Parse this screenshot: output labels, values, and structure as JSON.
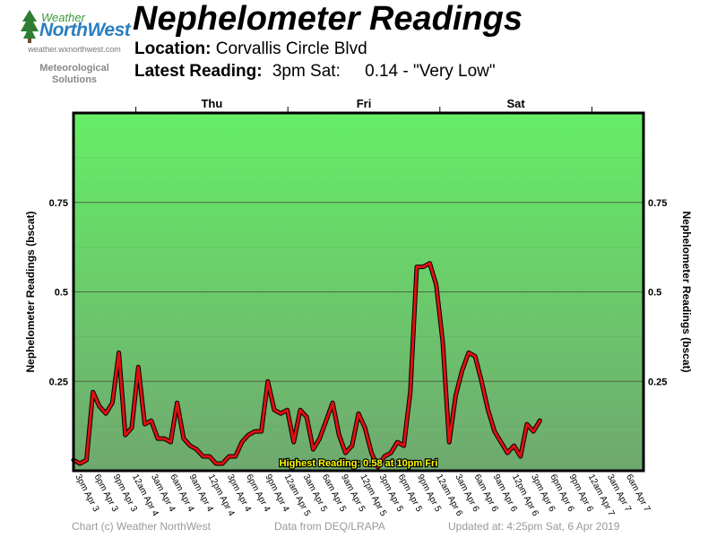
{
  "logo": {
    "word_top": "Weather",
    "word_main": "NorthWest",
    "url": "weather.wxnorthwest.com",
    "sub_line1": "Meteorological",
    "sub_line2": "Solutions"
  },
  "header": {
    "title": "Nephelometer Readings",
    "location_label": "Location:",
    "location_value": "Corvallis Circle Blvd",
    "latest_label": "Latest Reading:",
    "latest_time": "3pm Sat:",
    "latest_value": "0.14 - \"Very Low\""
  },
  "footer": {
    "copyright": "Chart (c) Weather NorthWest",
    "source": "Data from DEQ/LRAPA",
    "updated": "Updated at: 4:25pm Sat, 6 Apr 2019"
  },
  "colors": {
    "line": "#e01010",
    "line_outline": "#000000",
    "band_top": "#66ee66",
    "band_bottom": "#6fa86f",
    "frame": "#000000",
    "highest_text": "#ffff00"
  },
  "chart_data": {
    "type": "line",
    "ylabel": "Nephelometer Readings (bscat)",
    "ylim": [
      0,
      1.0
    ],
    "yticks": [
      "0.25",
      "0.5",
      "0.75"
    ],
    "ytick_values": [
      0.25,
      0.5,
      0.75
    ],
    "grid": true,
    "day_labels": [
      "Thu",
      "Fri",
      "Sat"
    ],
    "x_labels": [
      "3pm Apr 3",
      "6pm Apr 3",
      "9pm Apr 3",
      "12am Apr 4",
      "3am Apr 4",
      "6am Apr 4",
      "9am Apr 4",
      "12pm Apr 4",
      "3pm Apr 4",
      "6pm Apr 4",
      "9pm Apr 4",
      "12am Apr 5",
      "3am Apr 5",
      "6am Apr 5",
      "9am Apr 5",
      "12pm Apr 5",
      "3pm Apr 5",
      "6pm Apr 5",
      "9pm Apr 5",
      "12am Apr 6",
      "3am Apr 6",
      "6am Apr 6",
      "9am Apr 6",
      "12pm Apr 6",
      "3pm Apr 6",
      "6pm Apr 6",
      "9pm Apr 6",
      "12am Apr 7",
      "3am Apr 7",
      "6am Apr 7"
    ],
    "highest_label": "Highest Reading: 0.58 at 10pm Fri",
    "series": [
      {
        "values": [
          0.03,
          0.02,
          0.03,
          0.22,
          0.18,
          0.16,
          0.19,
          0.33,
          0.1,
          0.12,
          0.29,
          0.13,
          0.14,
          0.09,
          0.09,
          0.08,
          0.19,
          0.09,
          0.07,
          0.06,
          0.04,
          0.04,
          0.02,
          0.02,
          0.04,
          0.04,
          0.08,
          0.1,
          0.11,
          0.11,
          0.25,
          0.17,
          0.16,
          0.17,
          0.08,
          0.17,
          0.15,
          0.06,
          0.09,
          0.14,
          0.19,
          0.1,
          0.05,
          0.07,
          0.16,
          0.12,
          0.05,
          0.01,
          0.04,
          0.05,
          0.08,
          0.07,
          0.22,
          0.57,
          0.57,
          0.58,
          0.52,
          0.36,
          0.08,
          0.21,
          0.28,
          0.33,
          0.32,
          0.25,
          0.17,
          0.11,
          0.08,
          0.05,
          0.07,
          0.04,
          0.13,
          0.11,
          0.14
        ]
      }
    ]
  }
}
